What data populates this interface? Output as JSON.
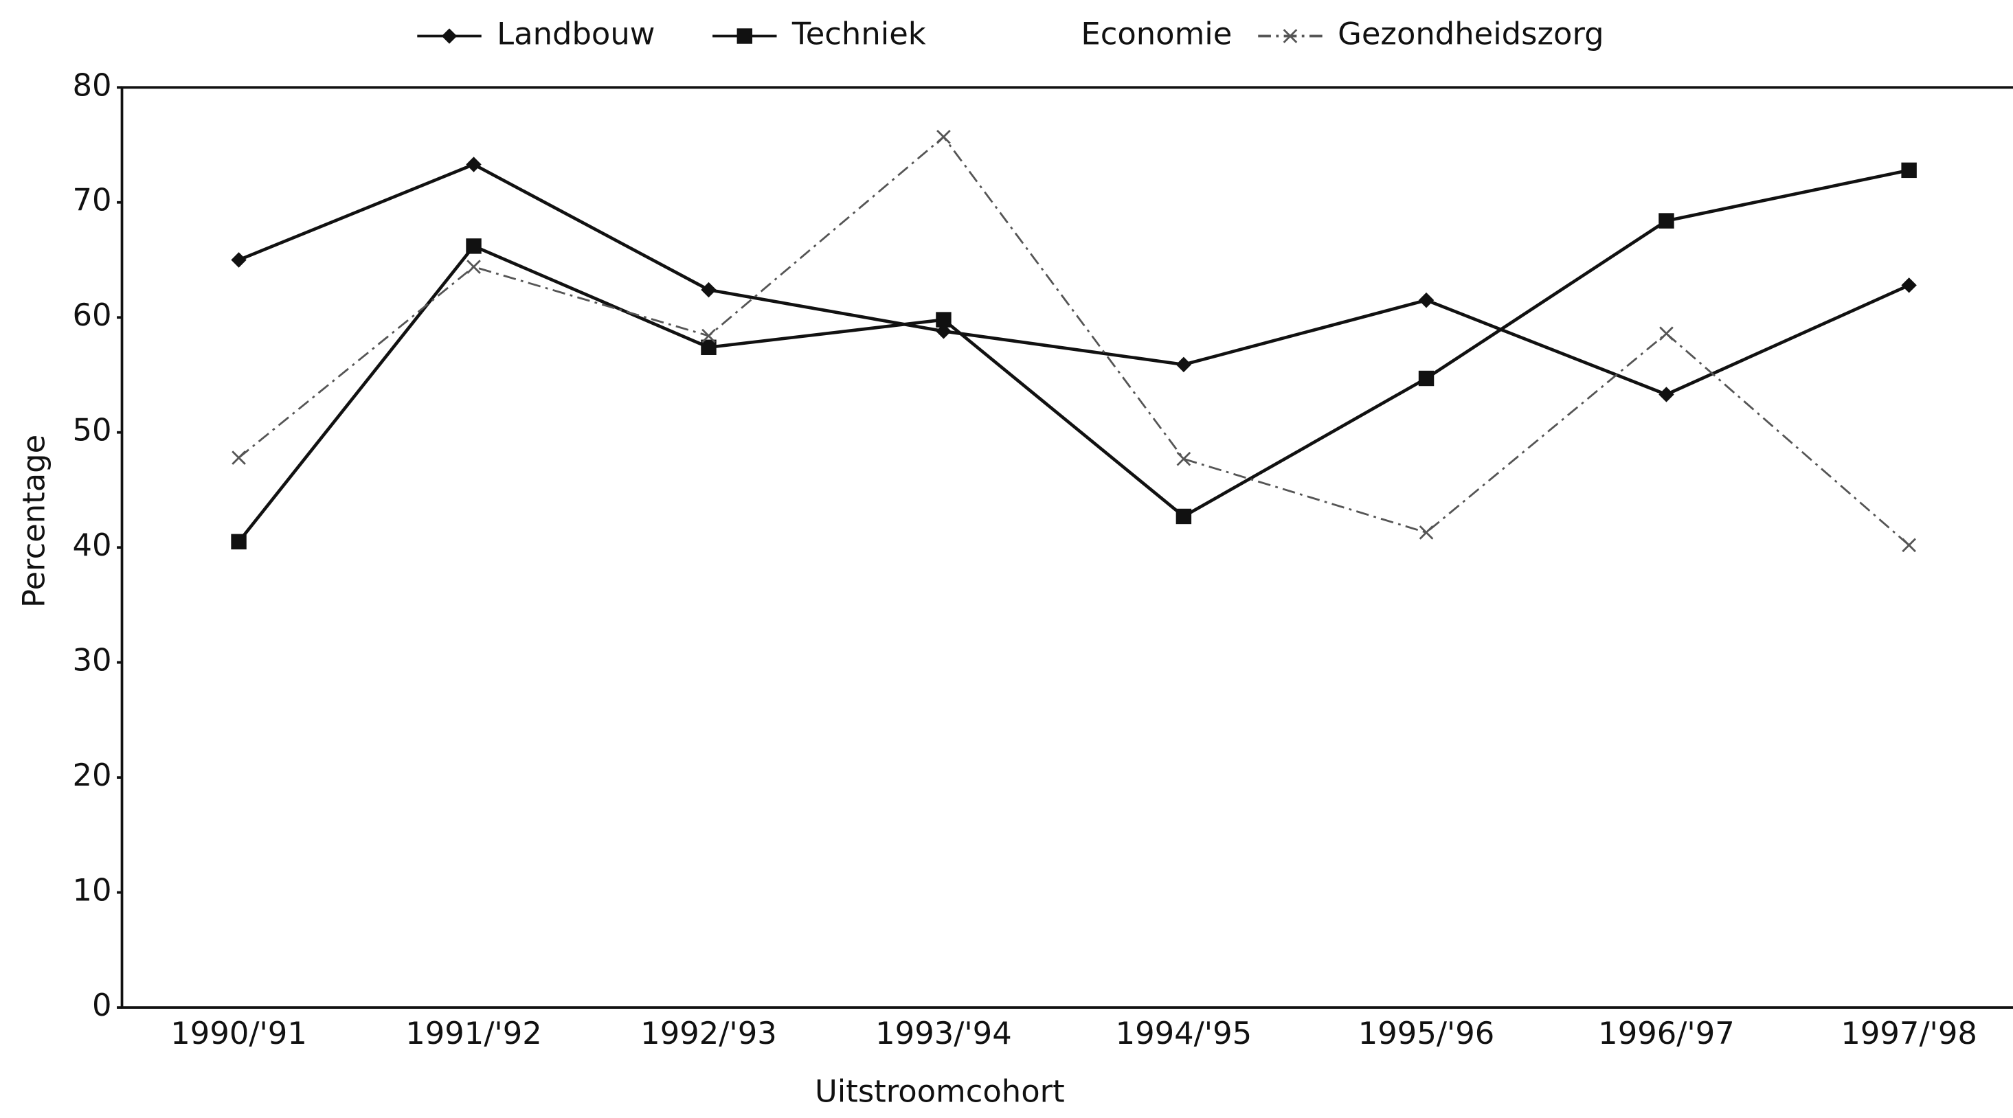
{
  "chart_data": {
    "type": "line",
    "categories": [
      "1990/'91",
      "1991/'92",
      "1992/'93",
      "1993/'94",
      "1994/'95",
      "1995/'96",
      "1996/'97",
      "1997/'98"
    ],
    "series": [
      {
        "name": "Landbouw",
        "color": "#111111",
        "marker": "diamond",
        "values": [
          65.0,
          73.3,
          62.4,
          58.8,
          55.9,
          61.5,
          53.3,
          62.8
        ]
      },
      {
        "name": "Techniek",
        "color": "#111111",
        "marker": "square",
        "values": [
          40.5,
          66.2,
          57.4,
          59.8,
          42.7,
          54.7,
          68.4,
          72.8
        ]
      },
      {
        "name": "Economie",
        "color": "#bbbbbb",
        "marker": "none",
        "values": [
          null,
          null,
          null,
          null,
          null,
          null,
          null,
          null
        ]
      },
      {
        "name": "Gezondheidszorg",
        "color": "#555555",
        "marker": "x",
        "values": [
          47.8,
          64.4,
          58.4,
          75.7,
          47.7,
          41.3,
          58.6,
          40.2
        ]
      }
    ],
    "xlabel": "Uitstroomcohort",
    "ylabel": "Percentage",
    "ylim": [
      0,
      80
    ],
    "yticks": [
      0,
      10,
      20,
      30,
      40,
      50,
      60,
      70,
      80
    ],
    "grid": false,
    "legend": "top"
  }
}
